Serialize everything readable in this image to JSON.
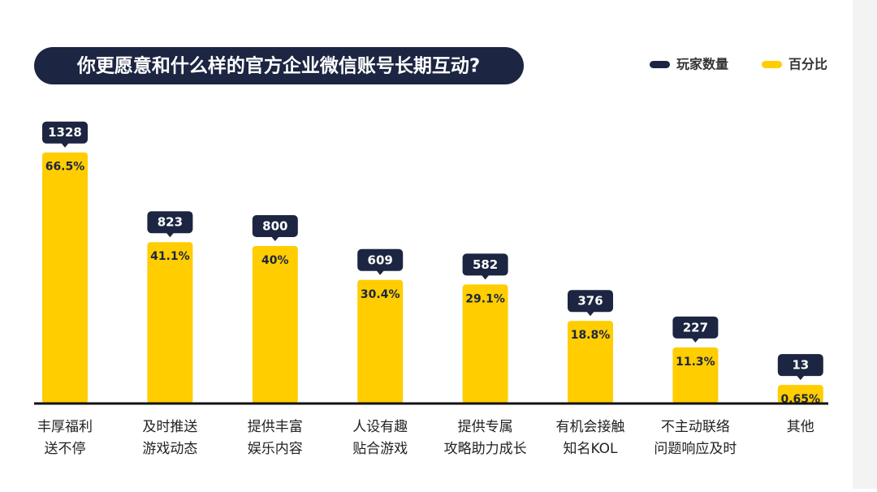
{
  "chart_data": {
    "type": "bar",
    "title": "你更愿意和什么样的官方企业微信账号长期互动?",
    "categories": [
      [
        "丰厚福利",
        "送不停"
      ],
      [
        "及时推送",
        "游戏动态"
      ],
      [
        "提供丰富",
        "娱乐内容"
      ],
      [
        "人设有趣",
        "贴合游戏"
      ],
      [
        "提供专属",
        "攻略助力成长"
      ],
      [
        "有机会接触",
        "知名KOL"
      ],
      [
        "不主动联络",
        "问题响应及时"
      ],
      [
        "其他"
      ]
    ],
    "series": [
      {
        "name": "玩家数量",
        "color": "#1c2541",
        "values": [
          1328,
          823,
          800,
          609,
          582,
          376,
          227,
          13
        ]
      },
      {
        "name": "百分比",
        "color": "#ffcd00",
        "values": [
          66.5,
          41.1,
          40,
          30.4,
          29.1,
          18.8,
          11.3,
          0.65
        ],
        "value_labels": [
          "66.5%",
          "41.1%",
          "40%",
          "30.4%",
          "29.1%",
          "18.8%",
          "11.3%",
          "0.65%"
        ]
      }
    ],
    "legend": "top-right"
  }
}
